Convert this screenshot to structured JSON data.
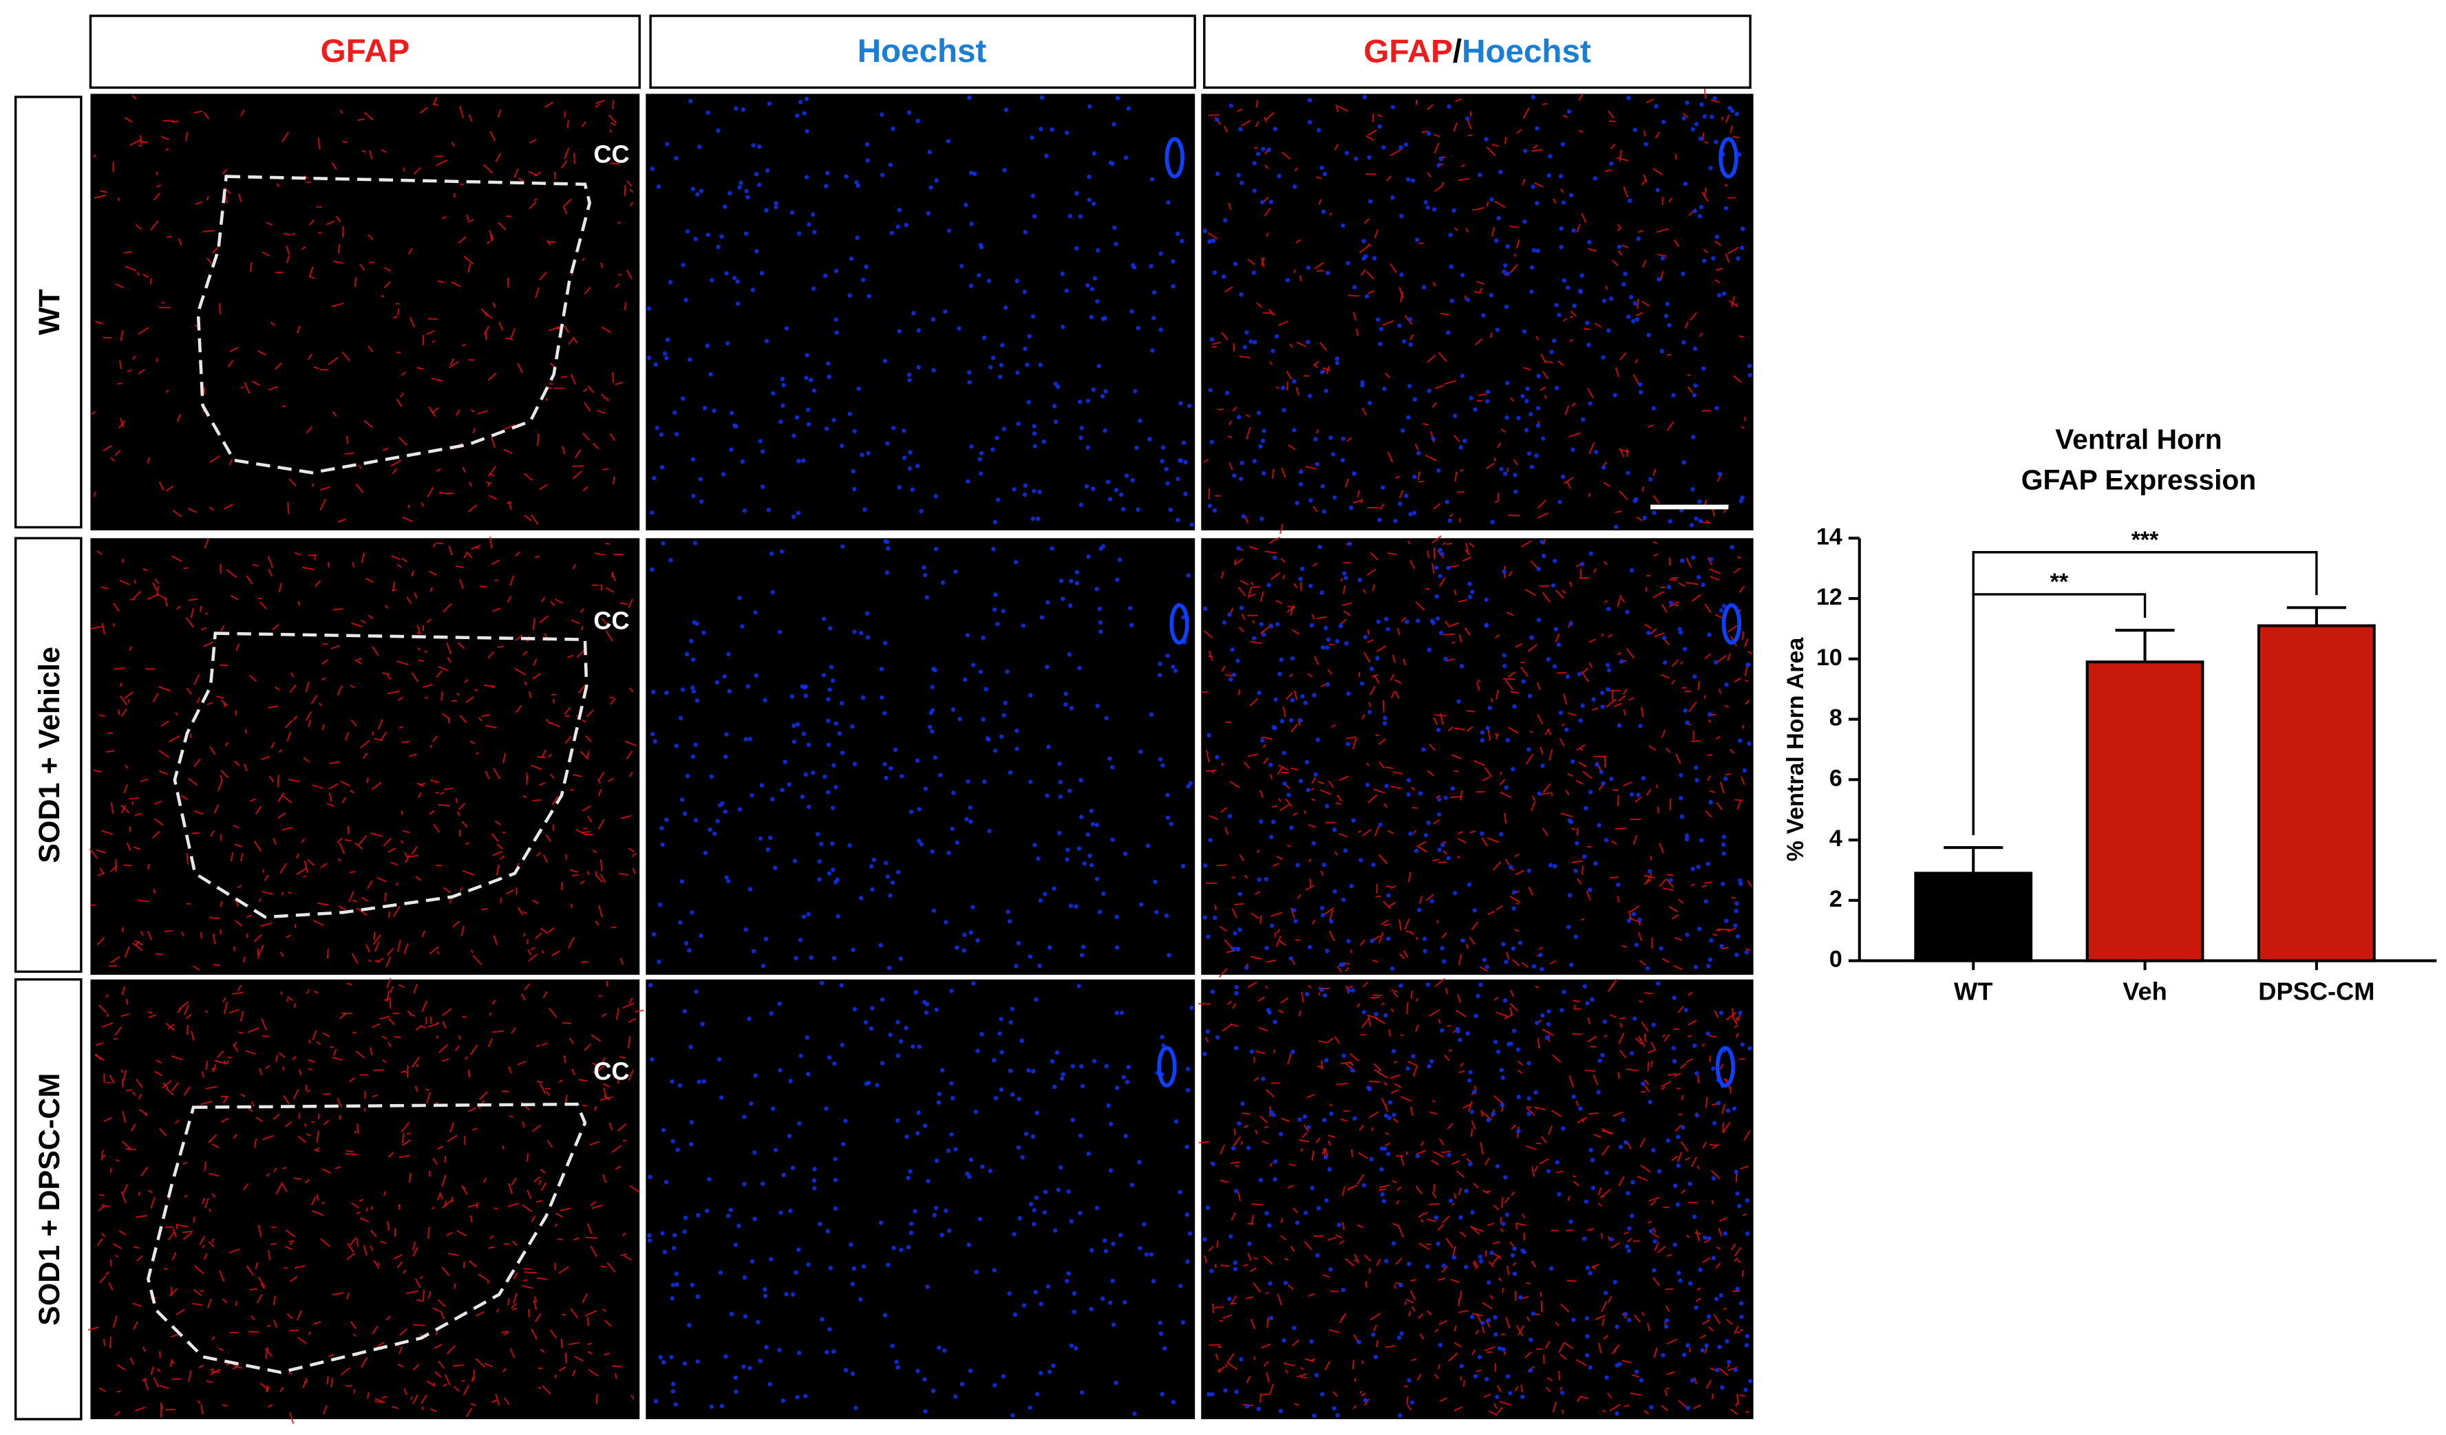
{
  "headers": {
    "gfap": "GFAP",
    "hoechst": "Hoechst",
    "merge": [
      "GFAP",
      "/",
      "Hoechst"
    ]
  },
  "rows": [
    "WT",
    "SOD1 + Vehicle",
    "SOD1 + DPSC-CM"
  ],
  "cc_label": "CC",
  "chart_data": {
    "type": "bar",
    "title": [
      "Ventral Horn",
      "GFAP Expression"
    ],
    "y_label": "% Ventral Horn Area",
    "categories": [
      "WT",
      "Veh",
      "DPSC-CM"
    ],
    "values": [
      2.9,
      9.9,
      11.1
    ],
    "errors": [
      0.85,
      1.05,
      0.6
    ],
    "colors": [
      "#000000",
      "#c8190c",
      "#c8190c"
    ],
    "ylim": [
      0,
      14
    ],
    "yticks": [
      0,
      2,
      4,
      6,
      8,
      10,
      12,
      14
    ],
    "annotations": [
      "**",
      "***"
    ]
  }
}
